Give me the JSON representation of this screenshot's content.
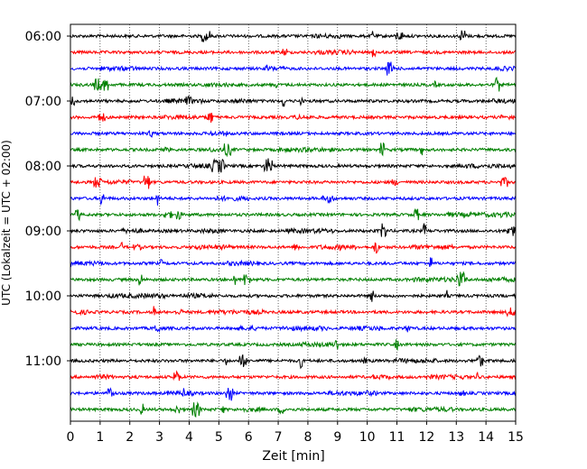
{
  "chart_data": {
    "type": "line",
    "title": "",
    "xlabel": "Zeit  [min]",
    "ylabel": "UTC (Lokalzeit = UTC + 02:00)",
    "xlim": [
      0,
      15
    ],
    "x_ticks": [
      "0",
      "1",
      "2",
      "3",
      "4",
      "5",
      "6",
      "7",
      "8",
      "9",
      "10",
      "11",
      "12",
      "13",
      "14",
      "15"
    ],
    "y_ticks": [
      "06:00",
      "07:00",
      "08:00",
      "09:00",
      "10:00",
      "11:00"
    ],
    "grid": "vertical dotted lines at each minute",
    "trace_start_utc": "06:00",
    "trace_interval_min": 15,
    "trace_count": 24,
    "trace_colors": [
      "#000000",
      "#ff0000",
      "#0000ff",
      "#008000"
    ]
  }
}
